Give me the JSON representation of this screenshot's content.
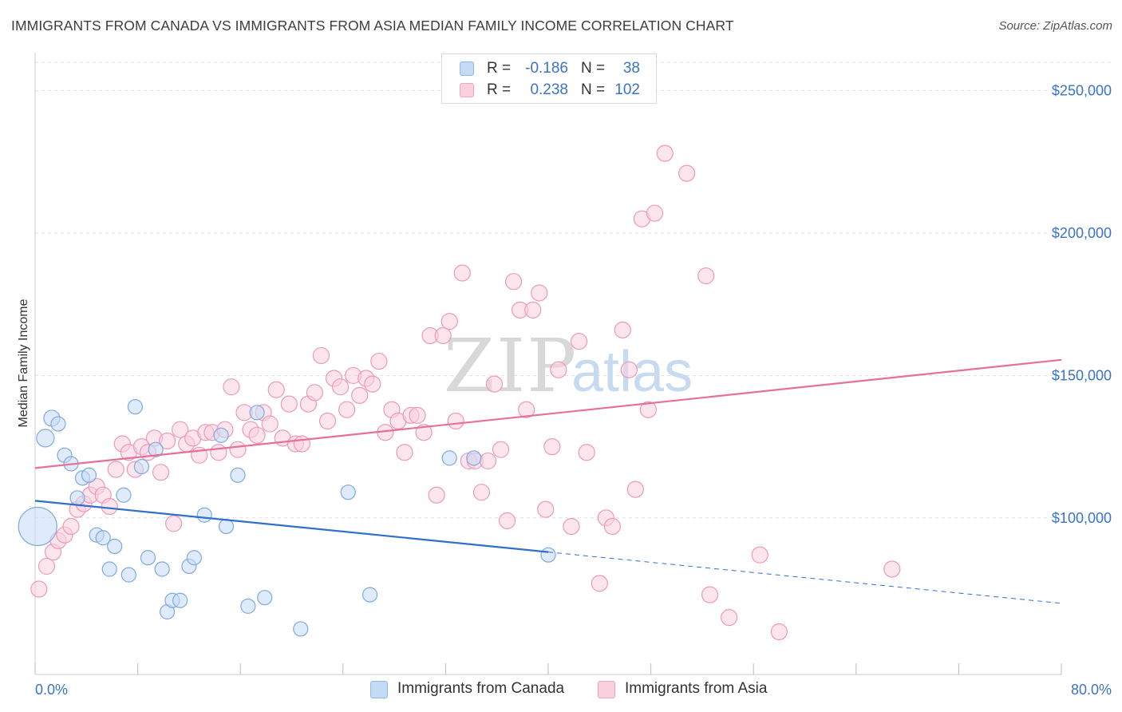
{
  "header": {
    "title": "IMMIGRANTS FROM CANADA VS IMMIGRANTS FROM ASIA MEDIAN FAMILY INCOME CORRELATION CHART",
    "source": "Source: ZipAtlas.com"
  },
  "watermark": {
    "zip": "ZIP",
    "atlas": "atlas"
  },
  "legend": {
    "r_label": "R =",
    "n_label": "N =",
    "rows": [
      {
        "r": "-0.186",
        "n": "38",
        "color": "#8fb8ea",
        "fill": "#c5dbf5"
      },
      {
        "r": "0.238",
        "n": "102",
        "color": "#f0a4bd",
        "fill": "#fbd0de"
      }
    ]
  },
  "bottom_legend": [
    "Immigrants from Canada",
    "Immigrants from Asia"
  ],
  "colors": {
    "canada_fill": "#c5dbf5",
    "canada_stroke": "#7ea9df",
    "canada_line": "#2f6fce",
    "asia_fill": "#fbd0de",
    "asia_stroke": "#ef98b6",
    "asia_line": "#e7709b",
    "grid": "#e0e0e0",
    "axis_text": "#3b74c4"
  },
  "chart_data": {
    "type": "scatter",
    "title": "IMMIGRANTS FROM CANADA VS IMMIGRANTS FROM ASIA MEDIAN FAMILY INCOME CORRELATION CHART",
    "xlabel": "",
    "ylabel": "Median Family Income",
    "xlim": [
      0,
      80
    ],
    "ylim": [
      45000,
      260000
    ],
    "x_tick_labels": [
      "0.0%",
      "80.0%"
    ],
    "y_ticks": [
      100000,
      150000,
      200000,
      250000
    ],
    "y_tick_labels": [
      "$100,000",
      "$150,000",
      "$200,000",
      "$250,000"
    ],
    "grid": true,
    "series": [
      {
        "name": "Immigrants from Canada",
        "r": -0.186,
        "n": 38,
        "trend": {
          "x0": 0,
          "y0": 106000,
          "x1": 40,
          "y1": 88000,
          "dash_to": 80,
          "dash_y": 70000
        },
        "points": [
          [
            0.2,
            97000,
            24
          ],
          [
            0.8,
            128000,
            11
          ],
          [
            1.3,
            135000,
            10
          ],
          [
            1.8,
            133000,
            9
          ],
          [
            2.3,
            122000,
            9
          ],
          [
            2.8,
            119000,
            9
          ],
          [
            3.3,
            107000,
            9
          ],
          [
            3.7,
            114000,
            9
          ],
          [
            4.2,
            115000,
            9
          ],
          [
            4.8,
            94000,
            9
          ],
          [
            5.3,
            93000,
            9
          ],
          [
            5.8,
            82000,
            9
          ],
          [
            6.2,
            90000,
            9
          ],
          [
            6.9,
            108000,
            9
          ],
          [
            7.3,
            80000,
            9
          ],
          [
            7.8,
            139000,
            9
          ],
          [
            8.3,
            118000,
            9
          ],
          [
            8.8,
            86000,
            9
          ],
          [
            9.4,
            124000,
            9
          ],
          [
            9.9,
            82000,
            9
          ],
          [
            10.3,
            67000,
            9
          ],
          [
            10.7,
            71000,
            9
          ],
          [
            11.3,
            71000,
            9
          ],
          [
            12.0,
            83000,
            9
          ],
          [
            12.4,
            86000,
            9
          ],
          [
            13.2,
            101000,
            9
          ],
          [
            14.5,
            129000,
            9
          ],
          [
            14.9,
            97000,
            9
          ],
          [
            15.8,
            115000,
            9
          ],
          [
            16.6,
            69000,
            9
          ],
          [
            17.3,
            137000,
            9
          ],
          [
            17.9,
            72000,
            9
          ],
          [
            20.7,
            61000,
            9
          ],
          [
            24.4,
            109000,
            9
          ],
          [
            26.1,
            73000,
            9
          ],
          [
            32.3,
            121000,
            9
          ],
          [
            34.2,
            121000,
            9
          ],
          [
            40.0,
            87000,
            9
          ]
        ]
      },
      {
        "name": "Immigrants from Asia",
        "r": 0.238,
        "n": 102,
        "trend": {
          "x0": 0,
          "y0": 117500,
          "x1": 80,
          "y1": 155500
        },
        "points": [
          [
            0.3,
            75000,
            10
          ],
          [
            0.9,
            83000,
            10
          ],
          [
            1.4,
            88000,
            10
          ],
          [
            1.8,
            92000,
            10
          ],
          [
            2.3,
            94000,
            10
          ],
          [
            2.8,
            97000,
            10
          ],
          [
            3.3,
            103000,
            10
          ],
          [
            3.8,
            105000,
            10
          ],
          [
            4.3,
            108000,
            10
          ],
          [
            4.8,
            111000,
            10
          ],
          [
            5.3,
            108000,
            10
          ],
          [
            5.8,
            104000,
            10
          ],
          [
            6.3,
            117000,
            10
          ],
          [
            6.8,
            126000,
            10
          ],
          [
            7.3,
            123000,
            10
          ],
          [
            7.8,
            117000,
            10
          ],
          [
            8.3,
            125000,
            10
          ],
          [
            8.8,
            123000,
            10
          ],
          [
            9.3,
            128000,
            10
          ],
          [
            9.8,
            116000,
            10
          ],
          [
            10.3,
            127000,
            10
          ],
          [
            10.8,
            98000,
            10
          ],
          [
            11.3,
            131000,
            10
          ],
          [
            11.8,
            126000,
            10
          ],
          [
            12.3,
            128000,
            10
          ],
          [
            12.8,
            122000,
            10
          ],
          [
            13.3,
            130000,
            10
          ],
          [
            13.8,
            130000,
            10
          ],
          [
            14.3,
            123000,
            10
          ],
          [
            14.8,
            131000,
            10
          ],
          [
            15.3,
            146000,
            10
          ],
          [
            15.8,
            124000,
            10
          ],
          [
            16.3,
            137000,
            10
          ],
          [
            16.8,
            131000,
            10
          ],
          [
            17.3,
            129000,
            10
          ],
          [
            17.8,
            137000,
            10
          ],
          [
            18.3,
            133000,
            10
          ],
          [
            18.8,
            145000,
            10
          ],
          [
            19.3,
            128000,
            10
          ],
          [
            19.8,
            140000,
            10
          ],
          [
            20.3,
            126000,
            10
          ],
          [
            20.8,
            126000,
            10
          ],
          [
            21.3,
            140000,
            10
          ],
          [
            21.8,
            144000,
            10
          ],
          [
            22.3,
            157000,
            10
          ],
          [
            22.8,
            134000,
            10
          ],
          [
            23.3,
            149000,
            10
          ],
          [
            23.8,
            146000,
            10
          ],
          [
            24.3,
            138000,
            10
          ],
          [
            24.8,
            150000,
            10
          ],
          [
            25.3,
            143000,
            10
          ],
          [
            25.8,
            149000,
            10
          ],
          [
            26.3,
            147000,
            10
          ],
          [
            26.8,
            155000,
            10
          ],
          [
            27.3,
            130000,
            10
          ],
          [
            27.8,
            138000,
            10
          ],
          [
            28.3,
            134000,
            10
          ],
          [
            28.8,
            123000,
            10
          ],
          [
            29.3,
            136000,
            10
          ],
          [
            29.8,
            136000,
            10
          ],
          [
            30.3,
            130000,
            10
          ],
          [
            30.8,
            164000,
            10
          ],
          [
            31.3,
            108000,
            10
          ],
          [
            31.8,
            164000,
            10
          ],
          [
            32.3,
            169000,
            10
          ],
          [
            32.8,
            134000,
            10
          ],
          [
            33.3,
            186000,
            10
          ],
          [
            33.8,
            120000,
            10
          ],
          [
            34.3,
            120000,
            10
          ],
          [
            34.8,
            109000,
            10
          ],
          [
            35.3,
            120000,
            10
          ],
          [
            35.8,
            147000,
            10
          ],
          [
            36.3,
            124000,
            10
          ],
          [
            36.8,
            99000,
            10
          ],
          [
            37.3,
            183000,
            10
          ],
          [
            37.8,
            173000,
            10
          ],
          [
            38.3,
            138000,
            10
          ],
          [
            38.8,
            173000,
            10
          ],
          [
            39.3,
            179000,
            10
          ],
          [
            39.8,
            103000,
            10
          ],
          [
            40.3,
            125000,
            10
          ],
          [
            40.8,
            152000,
            10
          ],
          [
            41.8,
            97000,
            10
          ],
          [
            42.4,
            162000,
            10
          ],
          [
            43.0,
            123000,
            10
          ],
          [
            44.0,
            77000,
            10
          ],
          [
            44.5,
            100000,
            10
          ],
          [
            45.0,
            97000,
            10
          ],
          [
            45.8,
            166000,
            10
          ],
          [
            46.3,
            152000,
            10
          ],
          [
            46.8,
            110000,
            10
          ],
          [
            47.3,
            205000,
            10
          ],
          [
            47.8,
            138000,
            10
          ],
          [
            48.3,
            207000,
            10
          ],
          [
            49.1,
            228000,
            10
          ],
          [
            50.8,
            221000,
            10
          ],
          [
            52.3,
            185000,
            10
          ],
          [
            52.6,
            73000,
            10
          ],
          [
            54.1,
            65000,
            10
          ],
          [
            56.5,
            87000,
            10
          ],
          [
            58.0,
            60000,
            10
          ],
          [
            66.8,
            82000,
            10
          ]
        ]
      }
    ]
  }
}
